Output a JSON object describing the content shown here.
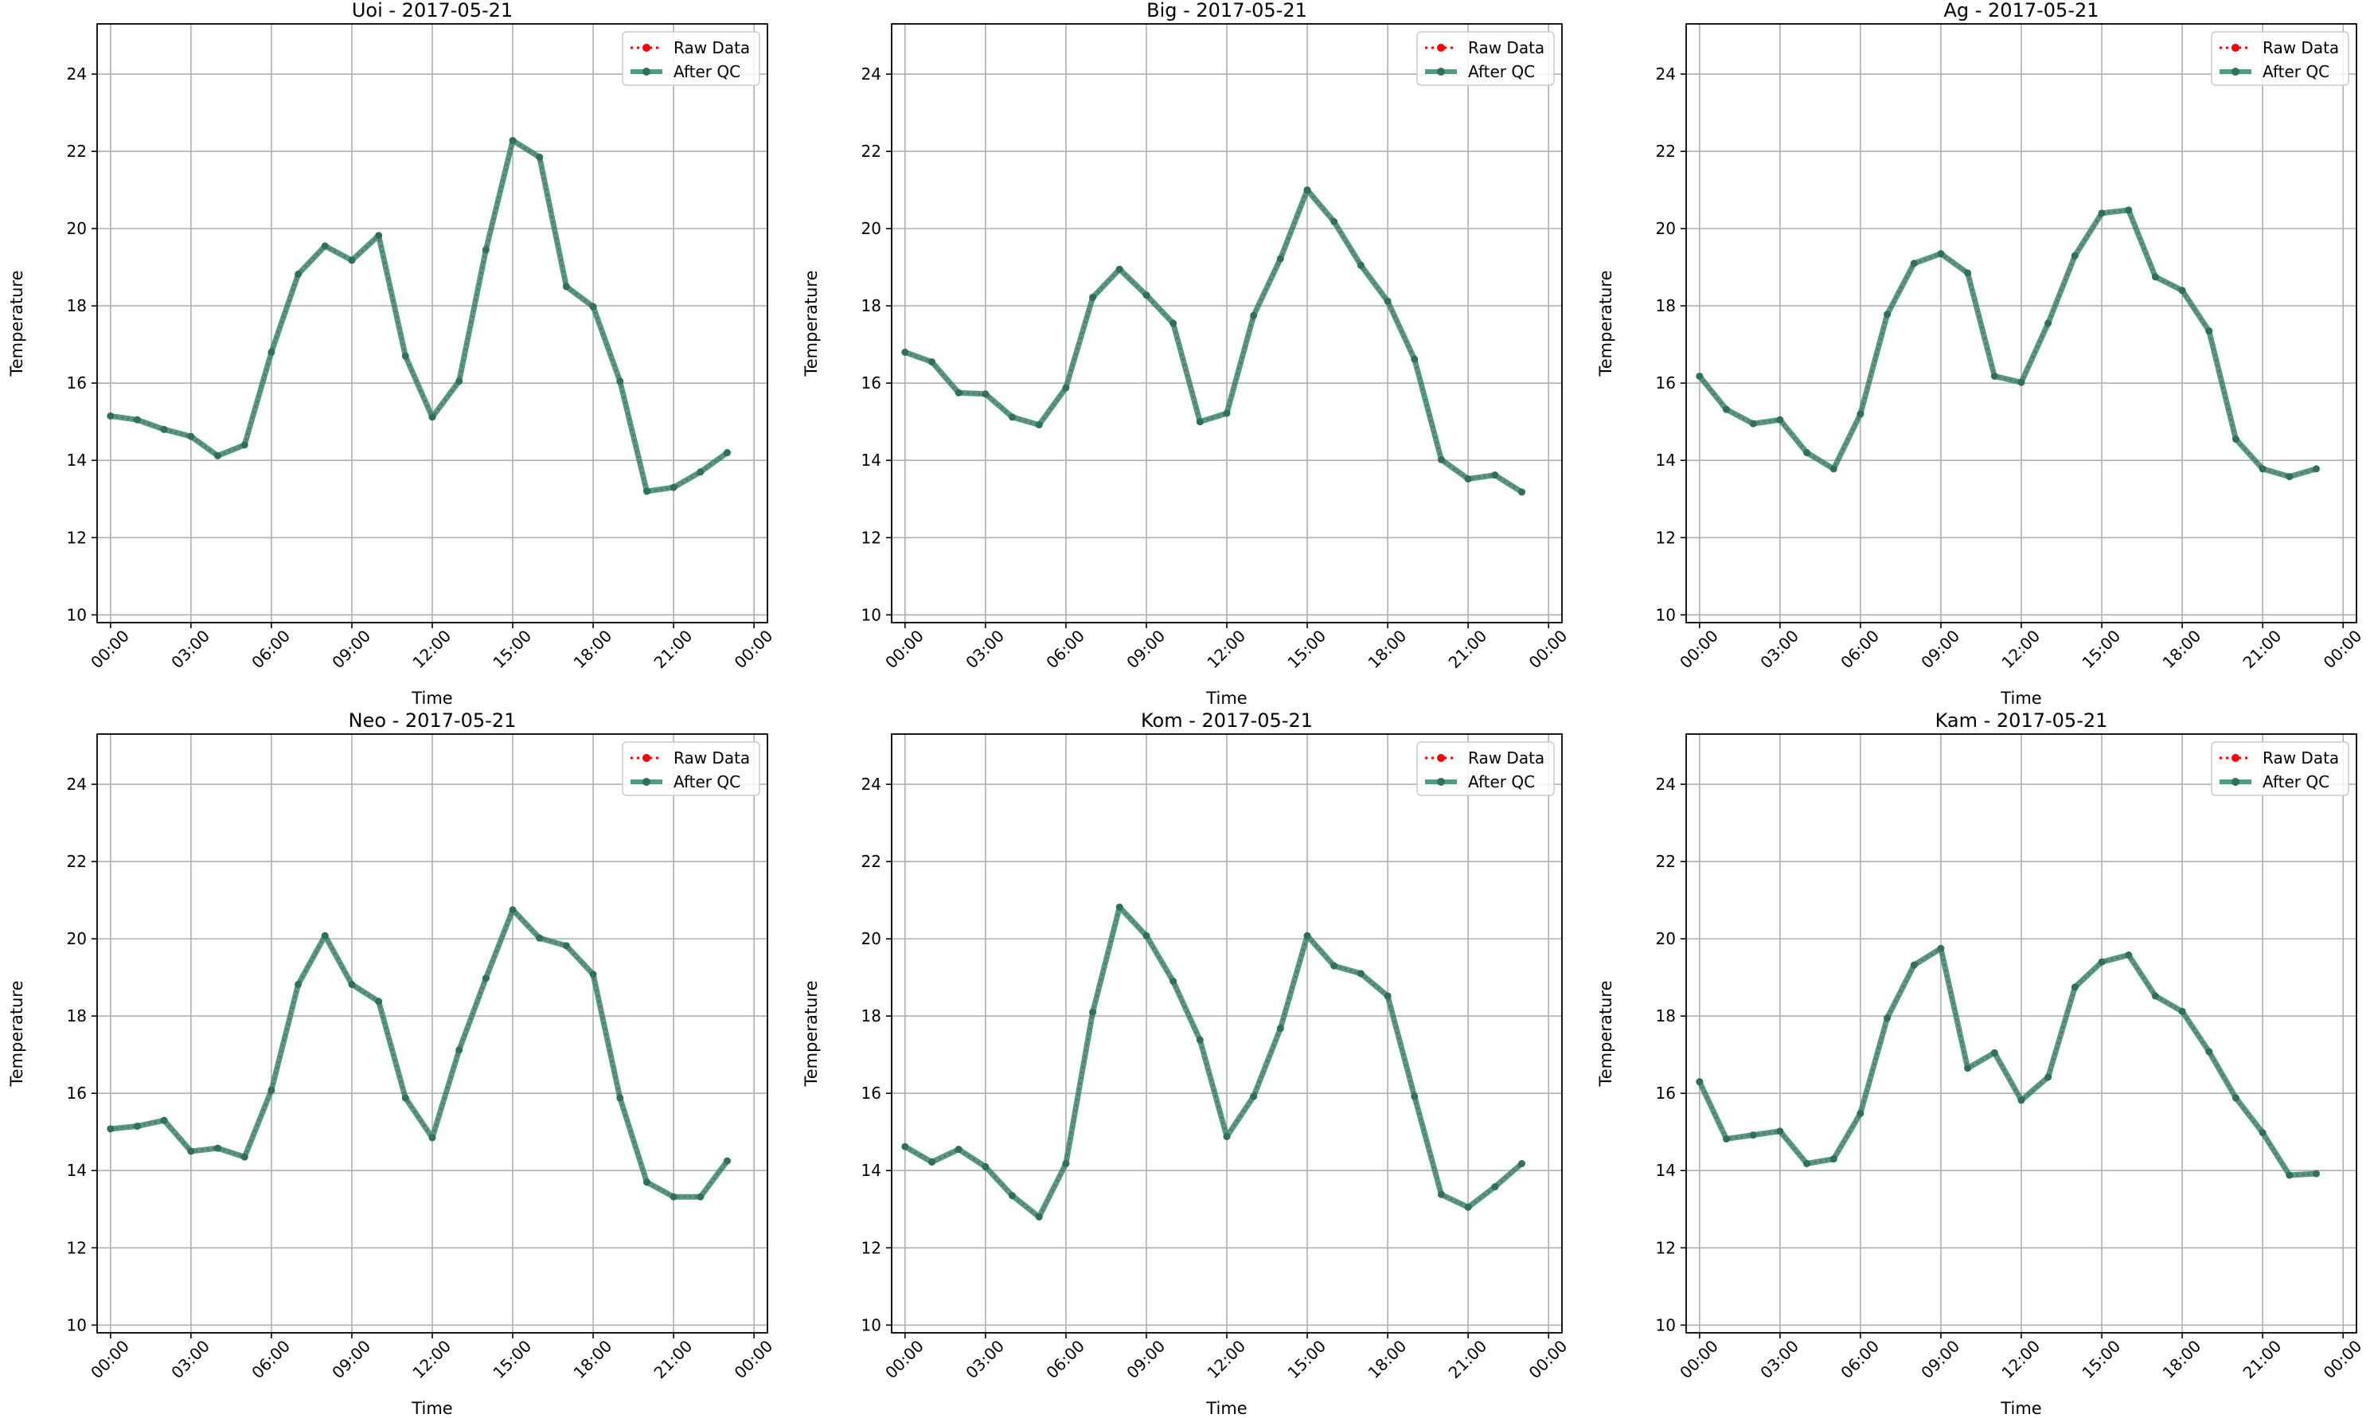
{
  "figure": {
    "x_tick_labels": [
      "00:00",
      "03:00",
      "06:00",
      "09:00",
      "12:00",
      "15:00",
      "18:00",
      "21:00",
      "00:00"
    ],
    "y_tick_labels": [
      "10",
      "12",
      "14",
      "16",
      "18",
      "20",
      "22",
      "24"
    ],
    "xlabel": "Time",
    "ylabel": "Temperature",
    "legend": {
      "raw": "Raw Data",
      "qc": "After QC"
    },
    "colors": {
      "raw": "#ff0000",
      "qc": "#2e8b6e",
      "qc_marker": "#2f6f5b",
      "grid": "#b0b0b0"
    }
  },
  "chart_data": [
    {
      "type": "line",
      "title": "Uoi - 2017-05-21",
      "xlabel": "Time",
      "ylabel": "Temperature",
      "x": [
        "00:00",
        "01:00",
        "02:00",
        "03:00",
        "04:00",
        "05:00",
        "06:00",
        "07:00",
        "08:00",
        "09:00",
        "10:00",
        "11:00",
        "12:00",
        "13:00",
        "14:00",
        "15:00",
        "16:00",
        "17:00",
        "18:00",
        "19:00",
        "20:00",
        "21:00",
        "22:00",
        "23:00"
      ],
      "xlim": [
        "00:00",
        "24:00"
      ],
      "ylim": [
        9.8,
        25.3
      ],
      "grid": true,
      "legend_position": "top-right",
      "series": [
        {
          "name": "Raw Data",
          "values": [
            15.15,
            15.05,
            14.8,
            14.62,
            14.12,
            14.4,
            16.8,
            18.82,
            19.55,
            19.18,
            19.82,
            16.7,
            15.12,
            16.05,
            19.45,
            22.28,
            21.85,
            18.5,
            17.98,
            16.05,
            13.2,
            13.3,
            13.7,
            14.2
          ]
        },
        {
          "name": "After QC",
          "values": [
            15.15,
            15.05,
            14.8,
            14.62,
            14.12,
            14.4,
            16.8,
            18.82,
            19.55,
            19.18,
            19.82,
            16.7,
            15.12,
            16.05,
            19.45,
            22.28,
            21.85,
            18.5,
            17.98,
            16.05,
            13.2,
            13.3,
            13.7,
            14.2
          ]
        }
      ]
    },
    {
      "type": "line",
      "title": "Big - 2017-05-21",
      "xlabel": "Time",
      "ylabel": "Temperature",
      "x": [
        "00:00",
        "01:00",
        "02:00",
        "03:00",
        "04:00",
        "05:00",
        "06:00",
        "07:00",
        "08:00",
        "09:00",
        "10:00",
        "11:00",
        "12:00",
        "13:00",
        "14:00",
        "15:00",
        "16:00",
        "17:00",
        "18:00",
        "19:00",
        "20:00",
        "21:00",
        "22:00",
        "23:00"
      ],
      "xlim": [
        "00:00",
        "24:00"
      ],
      "ylim": [
        9.8,
        25.3
      ],
      "grid": true,
      "legend_position": "top-right",
      "series": [
        {
          "name": "Raw Data",
          "values": [
            16.8,
            16.55,
            15.75,
            15.72,
            15.12,
            14.92,
            15.88,
            18.22,
            18.95,
            18.28,
            17.55,
            15.0,
            15.22,
            17.75,
            19.22,
            21.0,
            20.18,
            19.05,
            18.12,
            16.62,
            14.02,
            13.52,
            13.62,
            13.18
          ]
        },
        {
          "name": "After QC",
          "values": [
            16.8,
            16.55,
            15.75,
            15.72,
            15.12,
            14.92,
            15.88,
            18.22,
            18.95,
            18.28,
            17.55,
            15.0,
            15.22,
            17.75,
            19.22,
            21.0,
            20.18,
            19.05,
            18.12,
            16.62,
            14.02,
            13.52,
            13.62,
            13.18
          ]
        }
      ]
    },
    {
      "type": "line",
      "title": "Ag - 2017-05-21",
      "xlabel": "Time",
      "ylabel": "Temperature",
      "x": [
        "00:00",
        "01:00",
        "02:00",
        "03:00",
        "04:00",
        "05:00",
        "06:00",
        "07:00",
        "08:00",
        "09:00",
        "10:00",
        "11:00",
        "12:00",
        "13:00",
        "14:00",
        "15:00",
        "16:00",
        "17:00",
        "18:00",
        "19:00",
        "20:00",
        "21:00",
        "22:00",
        "23:00"
      ],
      "xlim": [
        "00:00",
        "24:00"
      ],
      "ylim": [
        9.8,
        25.3
      ],
      "grid": true,
      "legend_position": "top-right",
      "series": [
        {
          "name": "Raw Data",
          "values": [
            16.18,
            15.32,
            14.95,
            15.05,
            14.2,
            13.78,
            15.2,
            17.78,
            19.1,
            19.35,
            18.85,
            16.18,
            16.02,
            17.55,
            19.3,
            20.4,
            20.48,
            18.75,
            18.4,
            17.35,
            14.55,
            13.78,
            13.58,
            13.78
          ]
        },
        {
          "name": "After QC",
          "values": [
            16.18,
            15.32,
            14.95,
            15.05,
            14.2,
            13.78,
            15.2,
            17.78,
            19.1,
            19.35,
            18.85,
            16.18,
            16.02,
            17.55,
            19.3,
            20.4,
            20.48,
            18.75,
            18.4,
            17.35,
            14.55,
            13.78,
            13.58,
            13.78
          ]
        }
      ]
    },
    {
      "type": "line",
      "title": "Neo - 2017-05-21",
      "xlabel": "Time",
      "ylabel": "Temperature",
      "x": [
        "00:00",
        "01:00",
        "02:00",
        "03:00",
        "04:00",
        "05:00",
        "06:00",
        "07:00",
        "08:00",
        "09:00",
        "10:00",
        "11:00",
        "12:00",
        "13:00",
        "14:00",
        "15:00",
        "16:00",
        "17:00",
        "18:00",
        "19:00",
        "20:00",
        "21:00",
        "22:00",
        "23:00"
      ],
      "xlim": [
        "00:00",
        "24:00"
      ],
      "ylim": [
        9.8,
        25.3
      ],
      "grid": true,
      "legend_position": "top-right",
      "series": [
        {
          "name": "Raw Data",
          "values": [
            15.08,
            15.15,
            15.3,
            14.5,
            14.58,
            14.35,
            16.08,
            18.82,
            20.08,
            18.82,
            18.38,
            15.88,
            14.85,
            17.12,
            18.98,
            20.75,
            20.02,
            19.82,
            19.08,
            15.88,
            13.7,
            13.32,
            13.32,
            14.25
          ]
        },
        {
          "name": "After QC",
          "values": [
            15.08,
            15.15,
            15.3,
            14.5,
            14.58,
            14.35,
            16.08,
            18.82,
            20.08,
            18.82,
            18.38,
            15.88,
            14.85,
            17.12,
            18.98,
            20.75,
            20.02,
            19.82,
            19.08,
            15.88,
            13.7,
            13.32,
            13.32,
            14.25
          ]
        }
      ]
    },
    {
      "type": "line",
      "title": "Kom - 2017-05-21",
      "xlabel": "Time",
      "ylabel": "Temperature",
      "x": [
        "00:00",
        "01:00",
        "02:00",
        "03:00",
        "04:00",
        "05:00",
        "06:00",
        "07:00",
        "08:00",
        "09:00",
        "10:00",
        "11:00",
        "12:00",
        "13:00",
        "14:00",
        "15:00",
        "16:00",
        "17:00",
        "18:00",
        "19:00",
        "20:00",
        "21:00",
        "22:00",
        "23:00"
      ],
      "xlim": [
        "00:00",
        "24:00"
      ],
      "ylim": [
        9.8,
        25.3
      ],
      "grid": true,
      "legend_position": "top-right",
      "series": [
        {
          "name": "Raw Data",
          "values": [
            14.62,
            14.22,
            14.55,
            14.1,
            13.35,
            12.8,
            14.18,
            18.1,
            20.82,
            20.08,
            18.9,
            17.38,
            14.88,
            15.92,
            17.68,
            20.08,
            19.3,
            19.1,
            18.52,
            15.92,
            13.38,
            13.05,
            13.58,
            14.18
          ]
        },
        {
          "name": "After QC",
          "values": [
            14.62,
            14.22,
            14.55,
            14.1,
            13.35,
            12.8,
            14.18,
            18.1,
            20.82,
            20.08,
            18.9,
            17.38,
            14.88,
            15.92,
            17.68,
            20.08,
            19.3,
            19.1,
            18.52,
            15.92,
            13.38,
            13.05,
            13.58,
            14.18
          ]
        }
      ]
    },
    {
      "type": "line",
      "title": "Kam - 2017-05-21",
      "xlabel": "Time",
      "ylabel": "Temperature",
      "x": [
        "00:00",
        "01:00",
        "02:00",
        "03:00",
        "04:00",
        "05:00",
        "06:00",
        "07:00",
        "08:00",
        "09:00",
        "10:00",
        "11:00",
        "12:00",
        "13:00",
        "14:00",
        "15:00",
        "16:00",
        "17:00",
        "18:00",
        "19:00",
        "20:00",
        "21:00",
        "22:00",
        "23:00"
      ],
      "xlim": [
        "00:00",
        "24:00"
      ],
      "ylim": [
        9.8,
        25.3
      ],
      "grid": true,
      "legend_position": "top-right",
      "series": [
        {
          "name": "Raw Data",
          "values": [
            16.3,
            14.82,
            14.92,
            15.02,
            14.18,
            14.3,
            15.48,
            17.95,
            19.32,
            19.75,
            16.65,
            17.05,
            15.82,
            16.42,
            18.75,
            19.4,
            19.58,
            18.52,
            18.12,
            17.08,
            15.88,
            14.98,
            13.88,
            13.92
          ]
        },
        {
          "name": "After QC",
          "values": [
            16.3,
            14.82,
            14.92,
            15.02,
            14.18,
            14.3,
            15.48,
            17.95,
            19.32,
            19.75,
            16.65,
            17.05,
            15.82,
            16.42,
            18.75,
            19.4,
            19.58,
            18.52,
            18.12,
            17.08,
            15.88,
            14.98,
            13.88,
            13.92
          ]
        }
      ]
    }
  ]
}
